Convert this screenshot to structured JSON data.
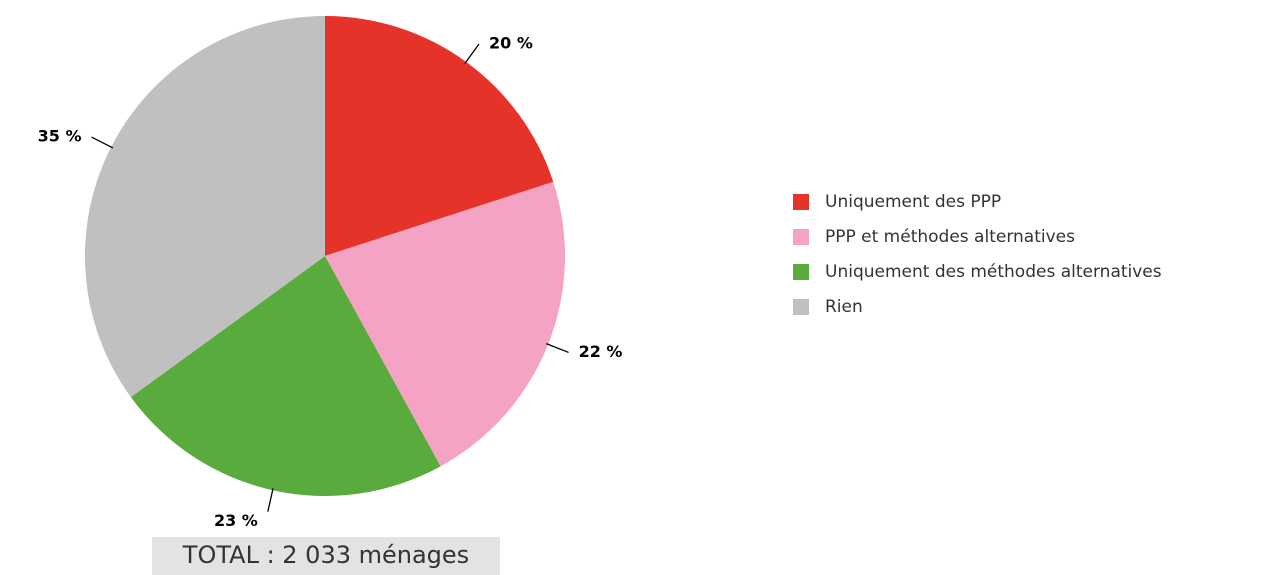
{
  "chart_data": {
    "type": "pie",
    "categories": [
      "Uniquement des PPP",
      "PPP et méthodes alternatives",
      "Uniquement des méthodes alternatives",
      "Rien"
    ],
    "values": [
      20,
      22,
      23,
      35
    ],
    "value_labels": [
      "20 %",
      "22 %",
      "23 %",
      "35 %"
    ],
    "colors": [
      "#e5332a",
      "#f5a3c5",
      "#5aab3e",
      "#c0c0c0"
    ],
    "legend": "right",
    "annotation": "TOTAL : 2 033 ménages"
  }
}
